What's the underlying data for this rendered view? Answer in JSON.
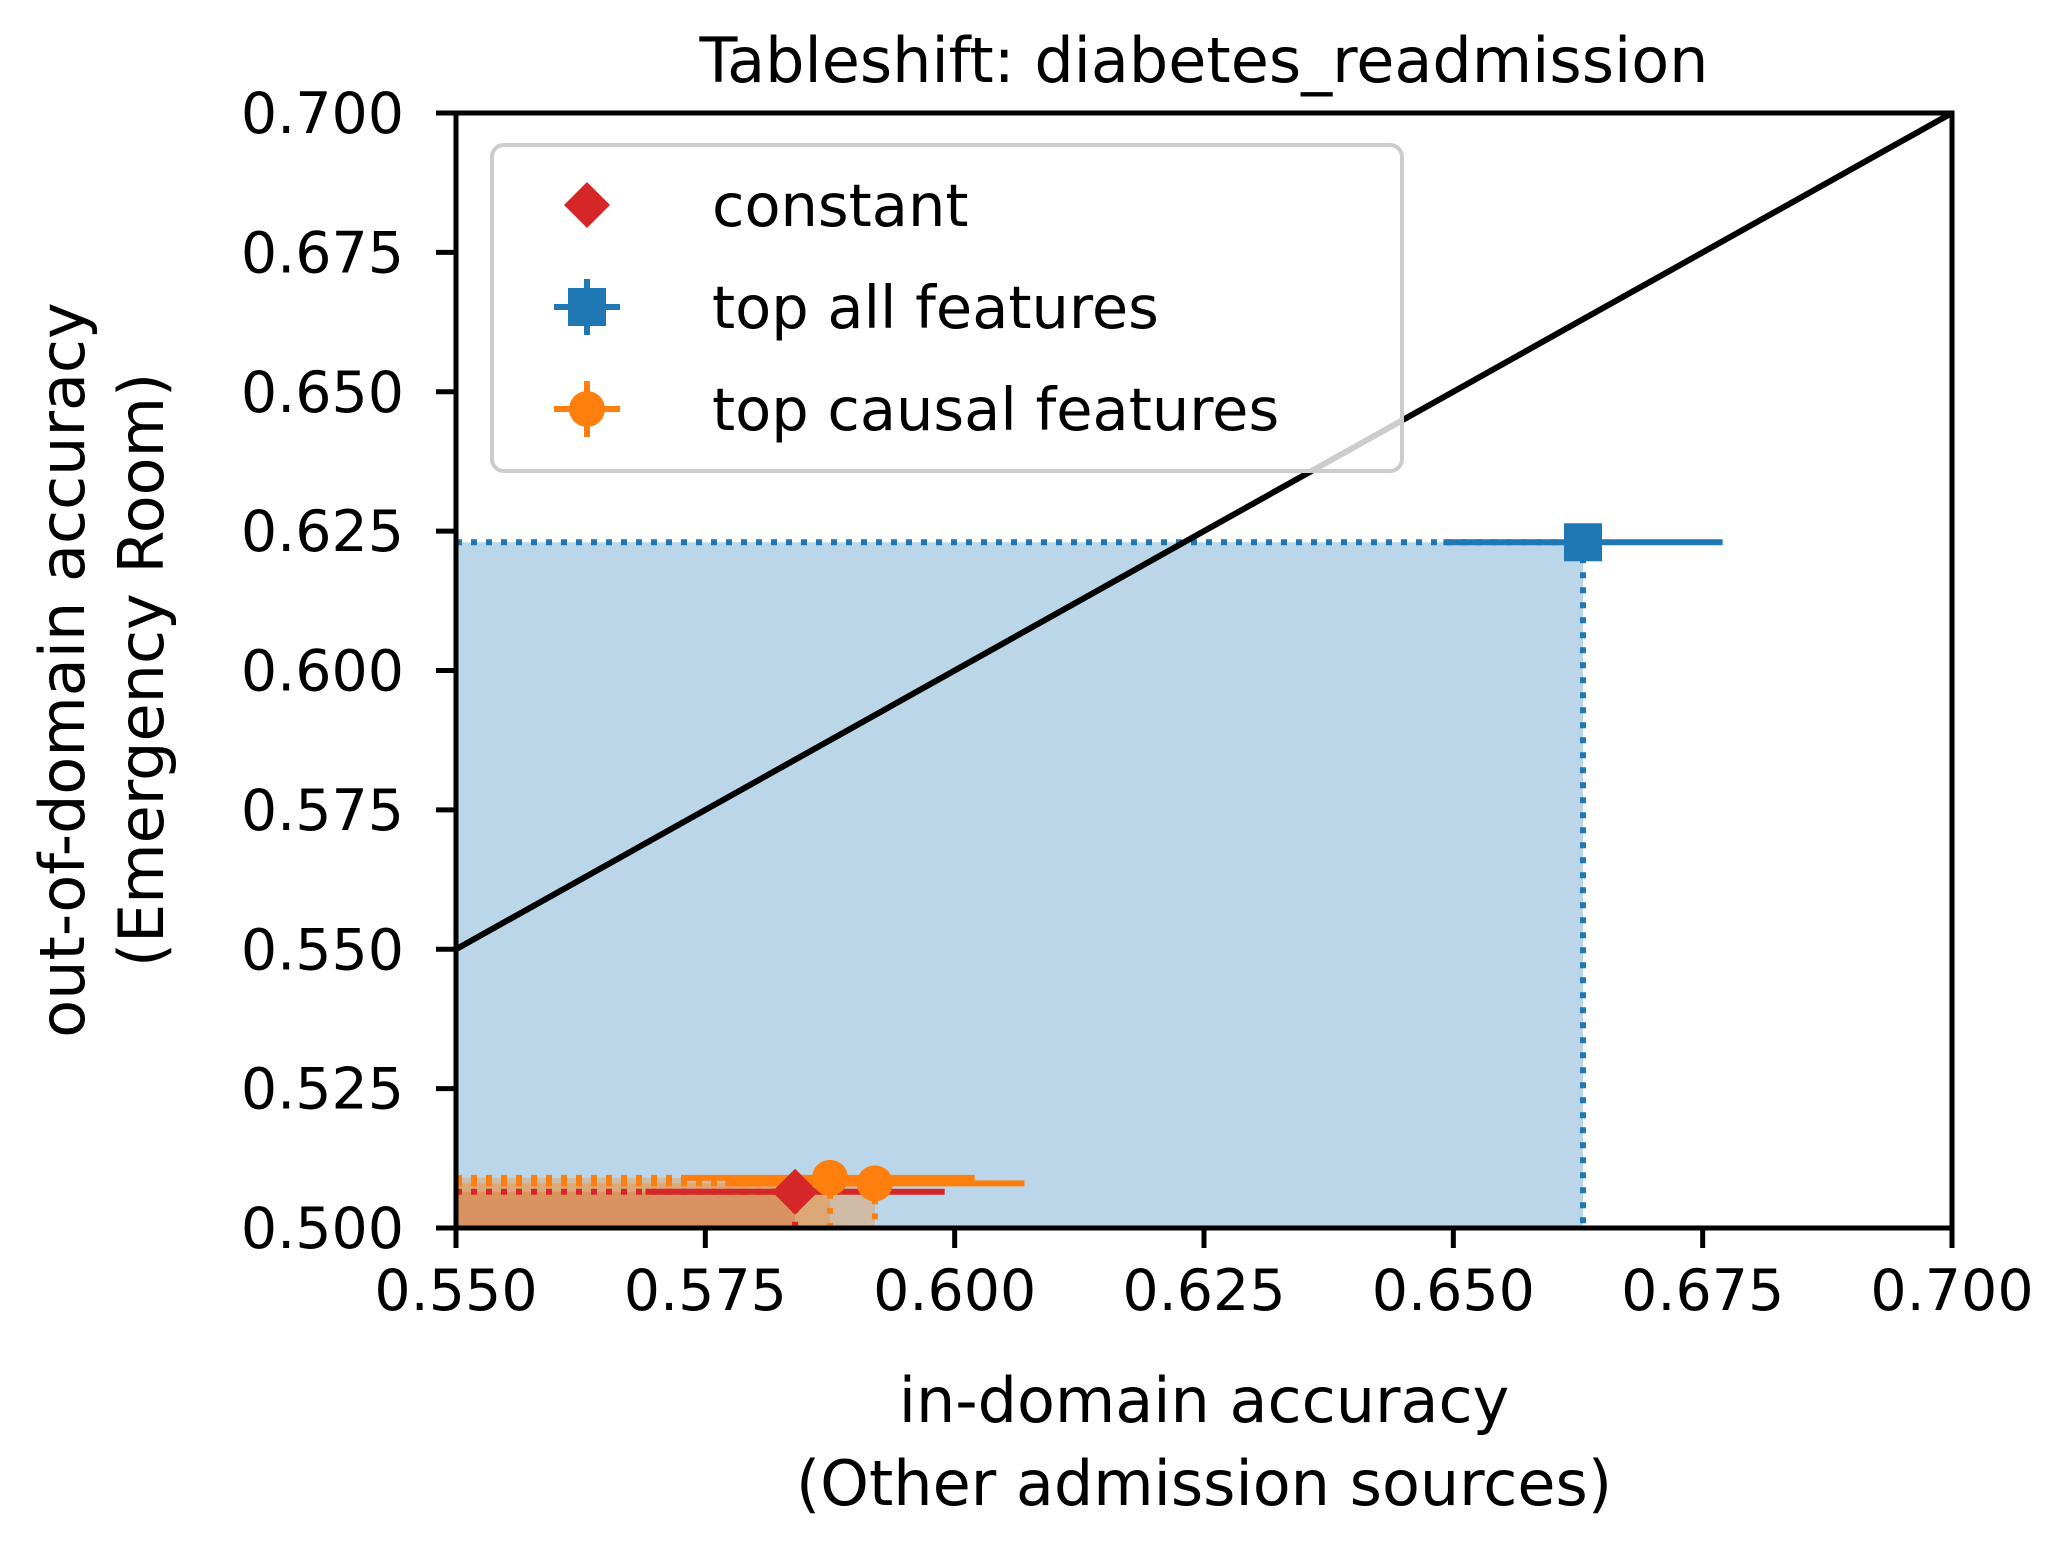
{
  "chart_data": {
    "type": "scatter",
    "title": "Tableshift: diabetes_readmission",
    "xlabel_lines": [
      "in-domain accuracy",
      "(Other admission sources)"
    ],
    "ylabel_lines": [
      "out-of-domain accuracy",
      "(Emergency Room)"
    ],
    "xlim": [
      0.55,
      0.7
    ],
    "ylim": [
      0.5,
      0.7
    ],
    "xticks": [
      "0.550",
      "0.575",
      "0.600",
      "0.625",
      "0.650",
      "0.675",
      "0.700"
    ],
    "yticks": [
      "0.500",
      "0.525",
      "0.550",
      "0.575",
      "0.600",
      "0.625",
      "0.650",
      "0.675",
      "0.700"
    ],
    "diagonal": {
      "x": [
        0.55,
        0.7
      ],
      "y": [
        0.55,
        0.7
      ]
    },
    "legend_position": "top-left",
    "series": [
      {
        "name": "constant",
        "color": "#d62728",
        "marker": "diamond",
        "points": [
          {
            "x": 0.584,
            "y": 0.5065,
            "xerr": [
              0.569,
              0.599
            ],
            "yerr": [
              0.5065,
              0.5065
            ]
          }
        ]
      },
      {
        "name": "top all features",
        "color": "#1f77b4",
        "marker": "square",
        "points": [
          {
            "x": 0.663,
            "y": 0.623,
            "xerr": [
              0.649,
              0.677
            ],
            "yerr": [
              0.6215,
              0.6245
            ]
          }
        ]
      },
      {
        "name": "top causal features",
        "color": "#ff7f0e",
        "marker": "circle",
        "points": [
          {
            "x": 0.5875,
            "y": 0.509,
            "xerr": [
              0.573,
              0.602
            ],
            "yerr": [
              0.5065,
              0.5115
            ]
          },
          {
            "x": 0.592,
            "y": 0.508,
            "xerr": [
              0.577,
              0.607
            ],
            "yerr": [
              0.505,
              0.511
            ]
          }
        ]
      }
    ]
  }
}
